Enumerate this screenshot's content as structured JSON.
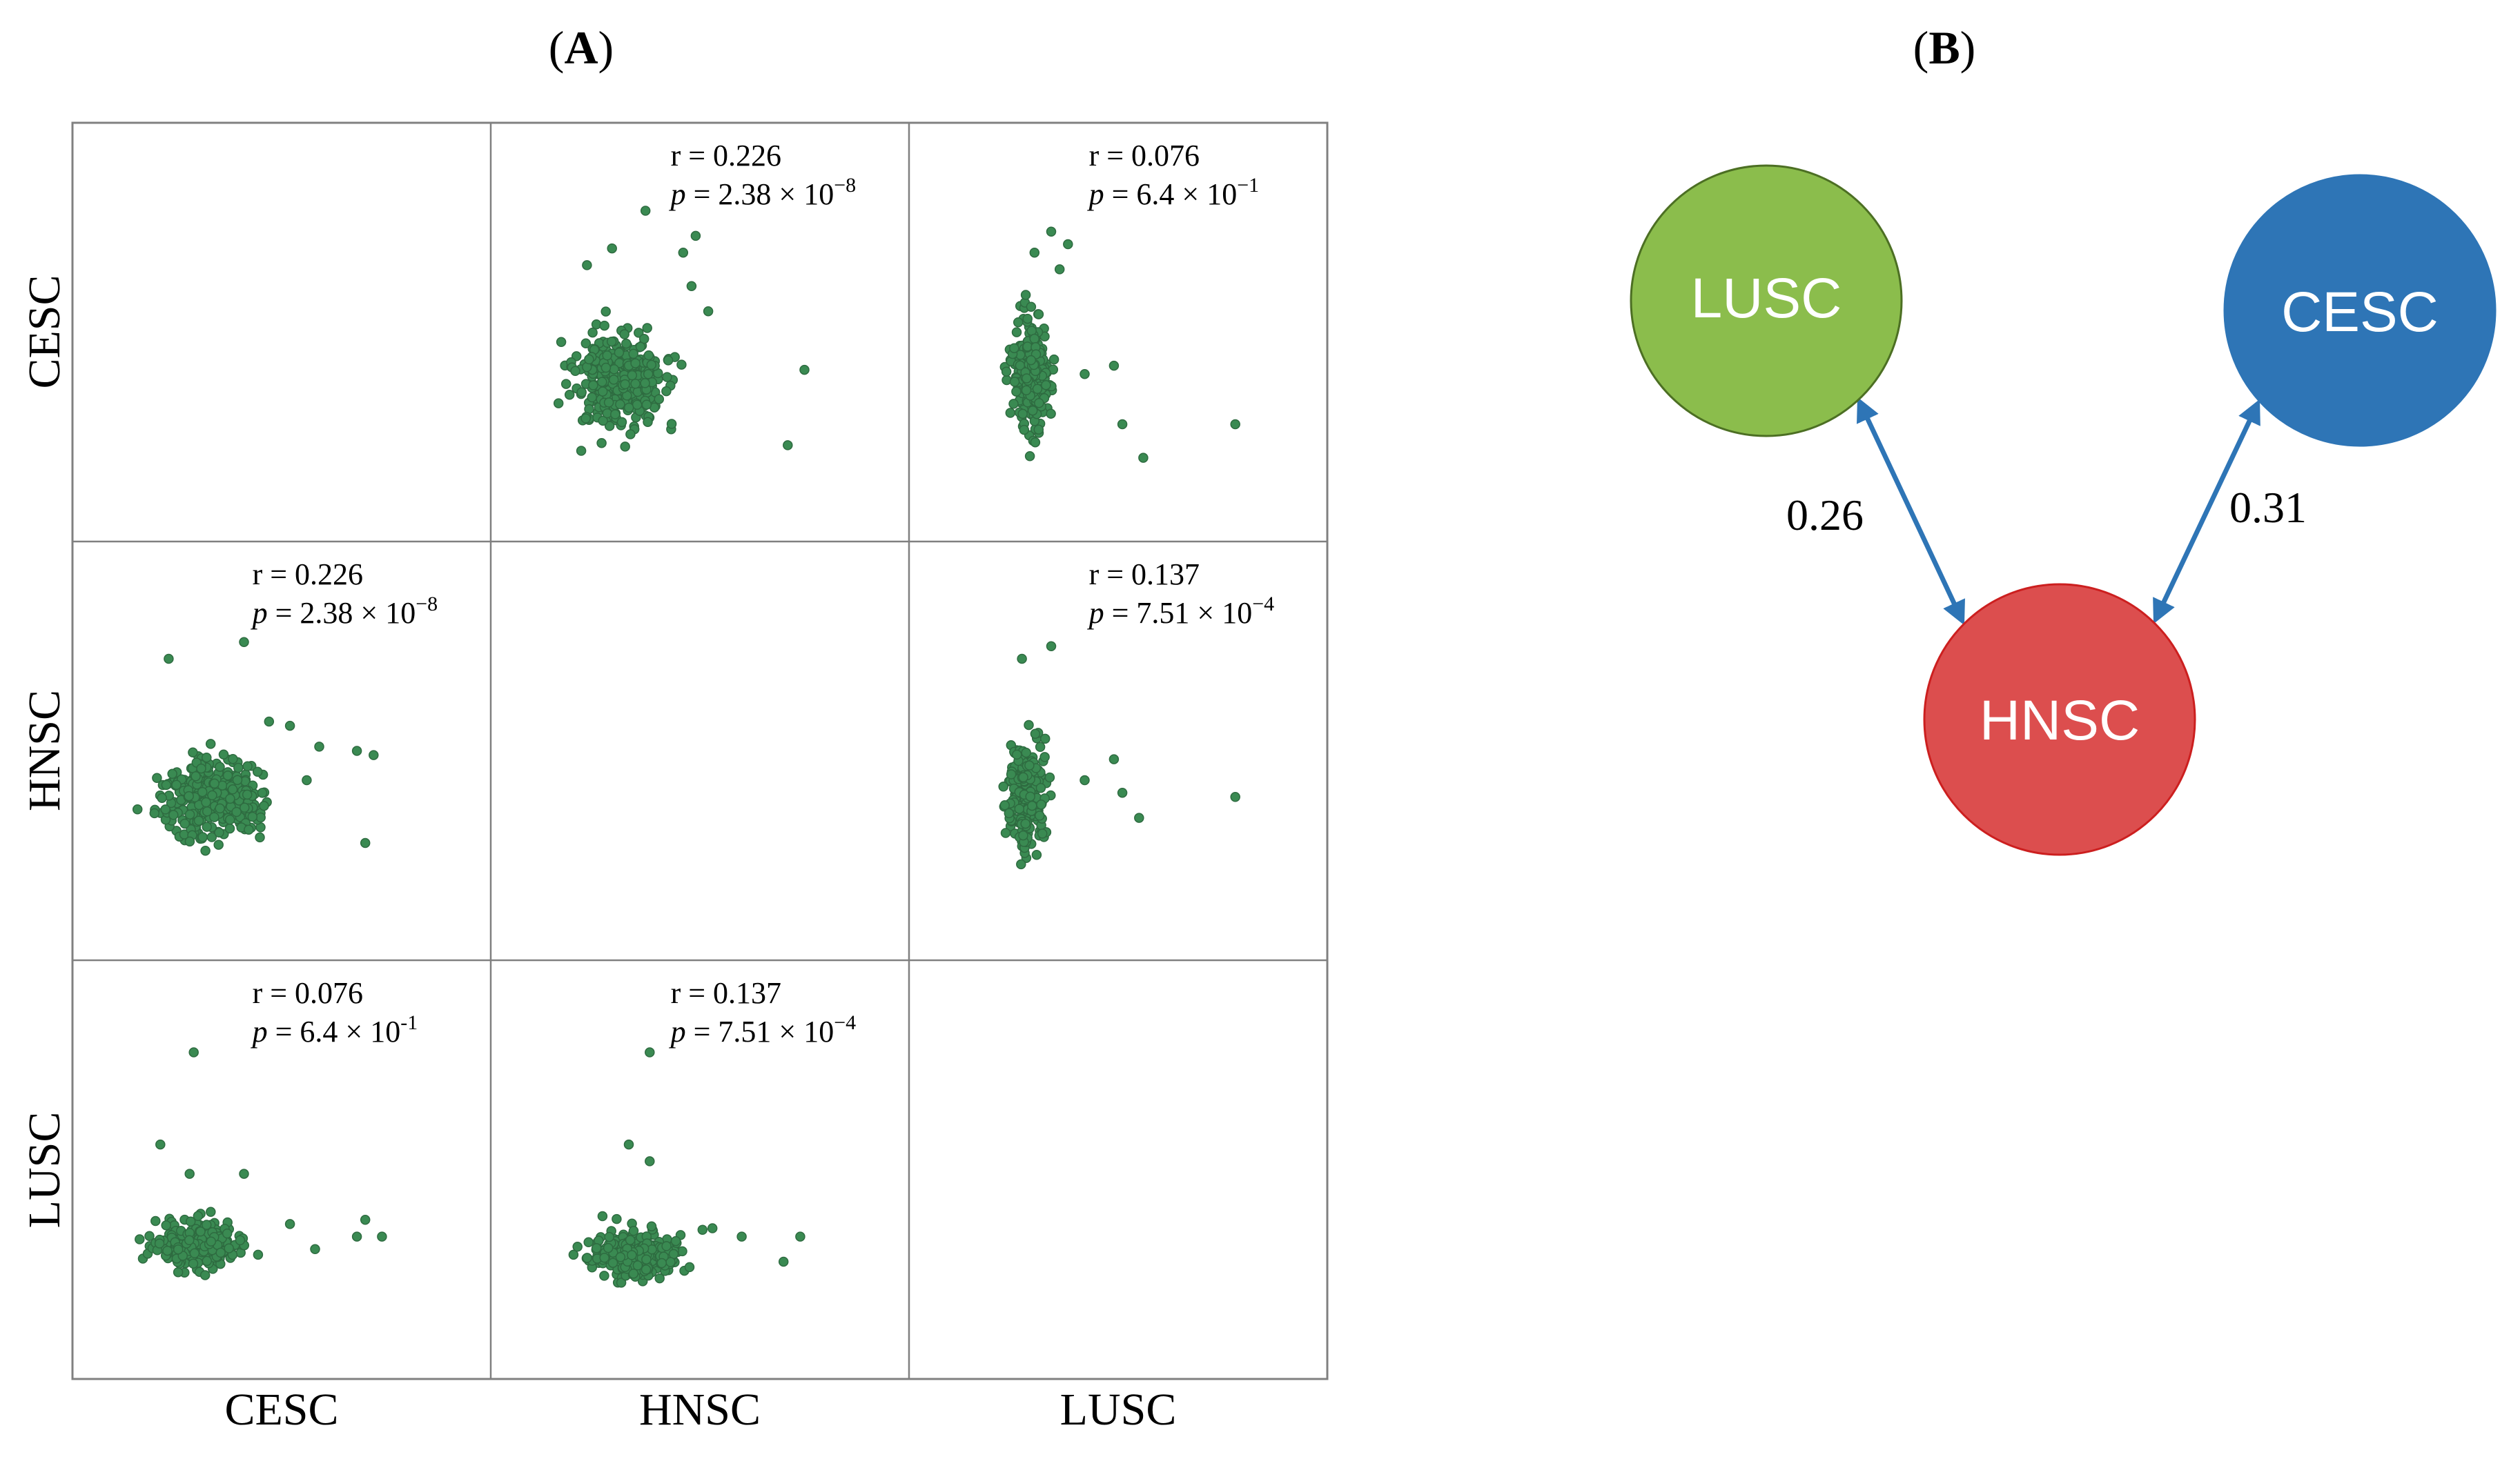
{
  "panels": {
    "a_label_open": "(",
    "a_label_letter": "A",
    "a_label_close": ")",
    "b_label_open": "(",
    "b_label_letter": "B",
    "b_label_close": ")"
  },
  "chart_data": {
    "type": "scatter",
    "variables": [
      "CESC",
      "HNSC",
      "LUSC"
    ],
    "column_labels": [
      "CESC",
      "HNSC",
      "LUSC"
    ],
    "row_labels": [
      "CESC",
      "HNSC",
      "LUSC"
    ],
    "point_color": "#3a8a52",
    "point_edge": "#2e6b40",
    "panels": [
      {
        "id": "cesc-hnsc",
        "row": 0,
        "col": 1,
        "r_text": "r = 0.226",
        "p_prefix": "p",
        "p_text": " = 2.38 × 10",
        "p_exp": "−8",
        "cluster": {
          "cx": 0.31,
          "cy": 0.62,
          "sx": 0.07,
          "sy": 0.075,
          "n": 330,
          "seed": 11
        },
        "outliers": [
          [
            0.37,
            0.21
          ],
          [
            0.49,
            0.27
          ],
          [
            0.46,
            0.31
          ],
          [
            0.29,
            0.3
          ],
          [
            0.75,
            0.59
          ],
          [
            0.71,
            0.77
          ],
          [
            0.23,
            0.34
          ],
          [
            0.48,
            0.39
          ],
          [
            0.52,
            0.45
          ]
        ]
      },
      {
        "id": "cesc-lusc",
        "row": 0,
        "col": 2,
        "r_text": "r = 0.076",
        "p_prefix": "p",
        "p_text": " = 6.4 × 10",
        "p_exp": "−1",
        "cluster": {
          "cx": 0.29,
          "cy": 0.6,
          "sx": 0.03,
          "sy": 0.085,
          "n": 240,
          "seed": 23
        },
        "outliers": [
          [
            0.34,
            0.26
          ],
          [
            0.38,
            0.29
          ],
          [
            0.3,
            0.31
          ],
          [
            0.36,
            0.35
          ],
          [
            0.49,
            0.58
          ],
          [
            0.51,
            0.72
          ],
          [
            0.56,
            0.8
          ],
          [
            0.78,
            0.72
          ],
          [
            0.42,
            0.6
          ]
        ]
      },
      {
        "id": "hnsc-cesc",
        "row": 1,
        "col": 0,
        "r_text": "r = 0.226",
        "p_prefix": "p",
        "p_text": " = 2.38 × 10",
        "p_exp": "−8",
        "cluster": {
          "cx": 0.33,
          "cy": 0.62,
          "sx": 0.075,
          "sy": 0.065,
          "n": 330,
          "seed": 37
        },
        "outliers": [
          [
            0.23,
            0.28
          ],
          [
            0.41,
            0.24
          ],
          [
            0.59,
            0.49
          ],
          [
            0.68,
            0.5
          ],
          [
            0.72,
            0.51
          ],
          [
            0.56,
            0.57
          ],
          [
            0.7,
            0.72
          ],
          [
            0.47,
            0.43
          ],
          [
            0.52,
            0.44
          ]
        ]
      },
      {
        "id": "hnsc-lusc",
        "row": 1,
        "col": 2,
        "r_text": "r = 0.137",
        "p_prefix": "p",
        "p_text": " = 7.51 × 10",
        "p_exp": "−4",
        "cluster": {
          "cx": 0.28,
          "cy": 0.61,
          "sx": 0.03,
          "sy": 0.08,
          "n": 260,
          "seed": 41
        },
        "outliers": [
          [
            0.27,
            0.28
          ],
          [
            0.34,
            0.25
          ],
          [
            0.49,
            0.52
          ],
          [
            0.51,
            0.6
          ],
          [
            0.55,
            0.66
          ],
          [
            0.78,
            0.61
          ],
          [
            0.42,
            0.57
          ]
        ]
      },
      {
        "id": "lusc-cesc",
        "row": 2,
        "col": 0,
        "r_text": "r = 0.076",
        "p_prefix": "p",
        "p_text": " = 6.4 × 10",
        "p_exp": "-1",
        "cluster": {
          "cx": 0.3,
          "cy": 0.68,
          "sx": 0.07,
          "sy": 0.035,
          "n": 300,
          "seed": 53
        },
        "outliers": [
          [
            0.29,
            0.22
          ],
          [
            0.21,
            0.44
          ],
          [
            0.28,
            0.51
          ],
          [
            0.41,
            0.51
          ],
          [
            0.7,
            0.62
          ],
          [
            0.68,
            0.66
          ],
          [
            0.74,
            0.66
          ],
          [
            0.52,
            0.63
          ],
          [
            0.58,
            0.69
          ]
        ]
      },
      {
        "id": "lusc-hnsc",
        "row": 2,
        "col": 1,
        "r_text": "r = 0.137",
        "p_prefix": "p",
        "p_text": " = 7.51 × 10",
        "p_exp": "−4",
        "cluster": {
          "cx": 0.34,
          "cy": 0.7,
          "sx": 0.065,
          "sy": 0.035,
          "n": 300,
          "seed": 67
        },
        "outliers": [
          [
            0.38,
            0.22
          ],
          [
            0.33,
            0.44
          ],
          [
            0.38,
            0.48
          ],
          [
            0.74,
            0.66
          ],
          [
            0.7,
            0.72
          ],
          [
            0.6,
            0.66
          ],
          [
            0.53,
            0.64
          ]
        ]
      }
    ]
  },
  "network": {
    "nodes": [
      {
        "id": "LUSC",
        "label": "LUSC",
        "color": "#8bbd4c",
        "stroke": "#4c6f23"
      },
      {
        "id": "CESC",
        "label": "CESC",
        "color": "#2e75b6",
        "stroke": "#2e75b6"
      },
      {
        "id": "HNSC",
        "label": "HNSC",
        "color": "#dc4e4e",
        "stroke": "#cc1f1f"
      }
    ],
    "edges": [
      {
        "from": "LUSC",
        "to": "HNSC",
        "weight": "0.26"
      },
      {
        "from": "CESC",
        "to": "HNSC",
        "weight": "0.31"
      }
    ],
    "edge_color": "#2e75b6"
  }
}
